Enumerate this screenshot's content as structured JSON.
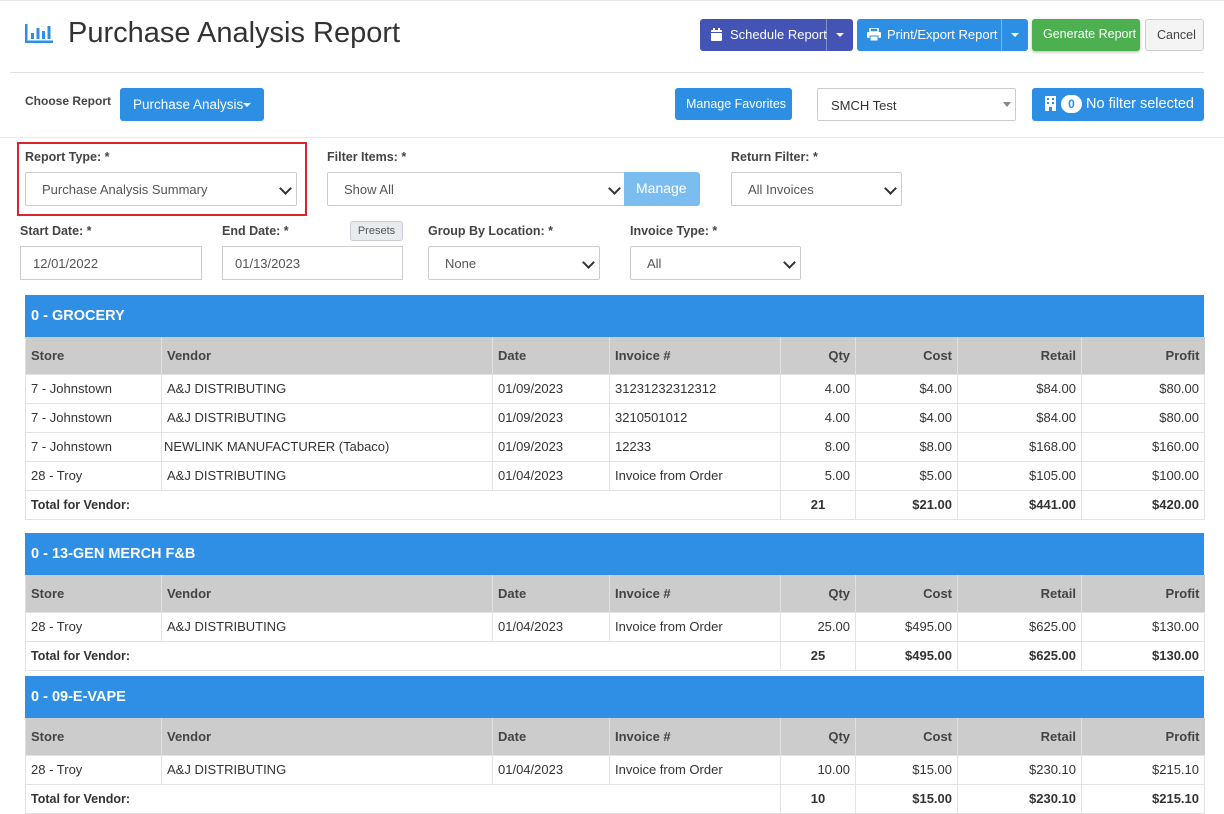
{
  "page": {
    "title": "Purchase Analysis Report",
    "title_icon": "bar-chart-icon"
  },
  "toolbar": {
    "schedule_label": "Schedule Report",
    "print_label": "Print/Export Report",
    "generate_label": "Generate Report",
    "cancel_label": "Cancel",
    "schedule_icon": "calendar-icon",
    "print_icon": "printer-icon"
  },
  "choose": {
    "label": "Choose Report",
    "report_button": "Purchase Analysis",
    "favorites_button": "Manage Favorites",
    "store_select": "SMCH Test",
    "filter_count": "0",
    "filter_label": "No filter selected",
    "filter_icon": "building-icon"
  },
  "filters": {
    "report_type_label": "Report Type: *",
    "report_type_value": "Purchase Analysis Summary",
    "filter_items_label": "Filter Items: *",
    "filter_items_value": "Show All",
    "manage_button": "Manage",
    "return_filter_label": "Return Filter: *",
    "return_filter_value": "All Invoices",
    "start_date_label": "Start Date: *",
    "start_date_value": "12/01/2022",
    "end_date_label": "End Date: *",
    "end_date_value": "01/13/2023",
    "presets_label": "Presets",
    "group_by_label": "Group By Location: *",
    "group_by_value": "None",
    "invoice_type_label": "Invoice Type: *",
    "invoice_type_value": "All"
  },
  "columns": [
    "Store",
    "Vendor",
    "Date",
    "Invoice #",
    "Qty",
    "Cost",
    "Retail",
    "Profit"
  ],
  "sections": [
    {
      "title": "0 - GROCERY",
      "rows": [
        [
          "7 - Johnstown",
          "A&J DISTRIBUTING",
          "01/09/2023",
          "31231232312312",
          "4.00",
          "$4.00",
          "$84.00",
          "$80.00"
        ],
        [
          "7 - Johnstown",
          "A&J DISTRIBUTING",
          "01/09/2023",
          "3210501012",
          "4.00",
          "$4.00",
          "$84.00",
          "$80.00"
        ],
        [
          "7 - Johnstown",
          "NEWLINK MANUFACTURER (Tabaco)",
          "01/09/2023",
          "12233",
          "8.00",
          "$8.00",
          "$168.00",
          "$160.00"
        ],
        [
          "28 - Troy",
          "A&J DISTRIBUTING",
          "01/04/2023",
          "Invoice from Order",
          "5.00",
          "$5.00",
          "$105.00",
          "$100.00"
        ]
      ],
      "total": {
        "label": "Total for Vendor:",
        "qty": "21",
        "cost": "$21.00",
        "retail": "$441.00",
        "profit": "$420.00"
      }
    },
    {
      "title": "0 - 13-GEN MERCH F&B",
      "rows": [
        [
          "28 - Troy",
          "A&J DISTRIBUTING",
          "01/04/2023",
          "Invoice from Order",
          "25.00",
          "$495.00",
          "$625.00",
          "$130.00"
        ]
      ],
      "total": {
        "label": "Total for Vendor:",
        "qty": "25",
        "cost": "$495.00",
        "retail": "$625.00",
        "profit": "$130.00"
      }
    },
    {
      "title": "0 - 09-E-VAPE",
      "rows": [
        [
          "28 - Troy",
          "A&J DISTRIBUTING",
          "01/04/2023",
          "Invoice from Order",
          "10.00",
          "$15.00",
          "$230.10",
          "$215.10"
        ]
      ],
      "total": {
        "label": "Total for Vendor:",
        "qty": "10",
        "cost": "$15.00",
        "retail": "$230.10",
        "profit": "$215.10"
      }
    }
  ]
}
